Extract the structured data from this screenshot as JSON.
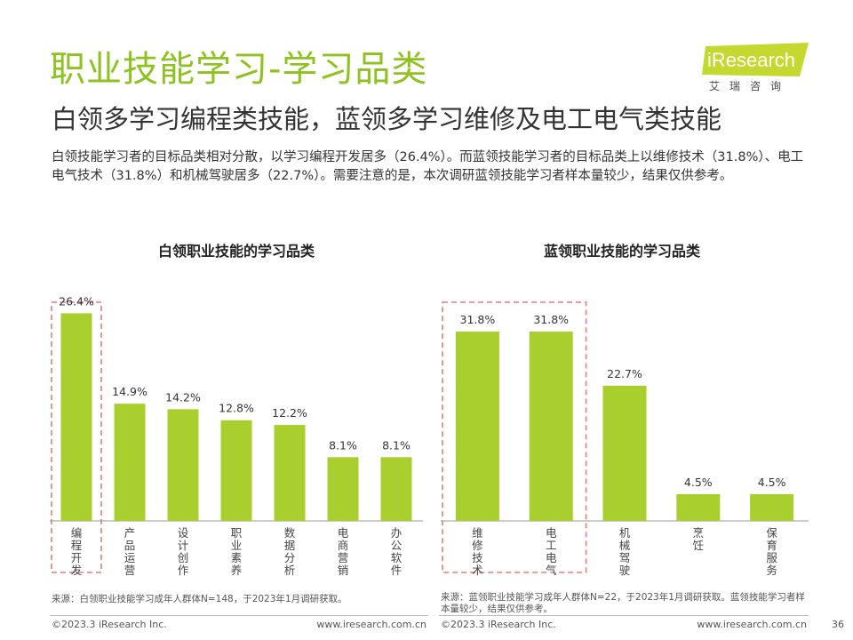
{
  "header": {
    "title": "职业技能学习-学习品类",
    "subtitle": "白领多学习编程类技能，蓝领多学习维修及电工电气类技能",
    "summary": "白领技能学习者的目标品类相对分散，以学习编程开发居多（26.4%）。而蓝领技能学习者的目标品类上以维修技术（31.8%）、电工电气技术（31.8%）和机械驾驶居多（22.7%）。需要注意的是，本次调研蓝领技能学习者样本量较少，结果仅供参考。"
  },
  "logo": {
    "word": "iResearch",
    "sub": "艾瑞咨询",
    "brand_color": "#c3d92f"
  },
  "colors": {
    "bar": "#a9cf2e",
    "highlight_box": "#e87d7d",
    "title": "#8dc21f",
    "axis": "#999999"
  },
  "chart_data": [
    {
      "type": "bar",
      "title": "白领职业技能的学习品类",
      "categories": [
        "编程开发",
        "产品/运营",
        "设计/创作",
        "职业素养",
        "数据分析",
        "电商营销",
        "办公软件"
      ],
      "values": [
        26.4,
        14.9,
        14.2,
        12.8,
        12.2,
        8.1,
        8.1
      ],
      "value_labels": [
        "26.4%",
        "14.9%",
        "14.2%",
        "12.8%",
        "12.2%",
        "8.1%",
        "8.1%"
      ],
      "highlighted": [
        "编程开发"
      ],
      "ylim": [
        0,
        33
      ],
      "grid": false,
      "source": "来源：白领职业技能学习成年人群体N=148，于2023年1月调研获取。"
    },
    {
      "type": "bar",
      "title": "蓝领职业技能的学习品类",
      "categories": [
        "维修技术",
        "电工电气",
        "机械/驾驶",
        "烹饪",
        "保育服务"
      ],
      "values": [
        31.8,
        31.8,
        22.7,
        4.5,
        4.5
      ],
      "value_labels": [
        "31.8%",
        "31.8%",
        "22.7%",
        "4.5%",
        "4.5%"
      ],
      "highlighted": [
        "维修技术",
        "电工电气"
      ],
      "ylim": [
        0,
        33
      ],
      "grid": false,
      "source": "来源：蓝领职业技能学习成年人群体N=22，于2023年1月调研获取。蓝领技能学习者样本量较少，结果仅供参考。"
    }
  ],
  "footer": {
    "left_copyright": "©2023.3 iResearch Inc.",
    "left_url": "www.iresearch.com.cn",
    "right_copyright": "©2023.3 iResearch Inc.",
    "right_url": "www.iresearch.com.cn",
    "page_number": "36"
  }
}
